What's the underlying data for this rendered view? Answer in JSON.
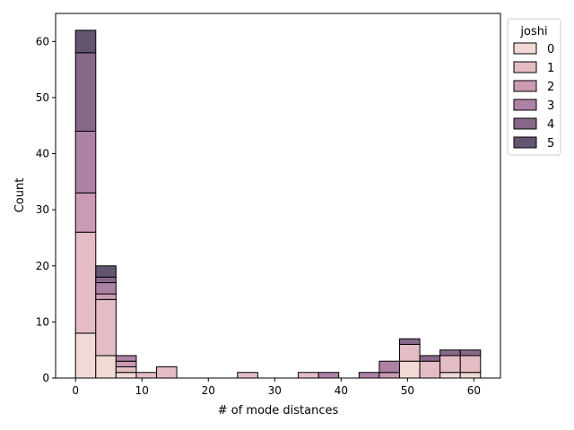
{
  "chart_data": {
    "type": "bar",
    "stacked": true,
    "title": "",
    "xlabel": "# of mode distances",
    "ylabel": "Count",
    "xlim": [
      -3,
      64
    ],
    "ylim": [
      0,
      65
    ],
    "x_ticks": [
      0,
      10,
      20,
      30,
      40,
      50,
      60
    ],
    "y_ticks": [
      0,
      10,
      20,
      30,
      40,
      50,
      60
    ],
    "grid": false,
    "legend": {
      "title": "joshi",
      "placement": "upper-right-outside"
    },
    "bins": [
      {
        "x0": 0.0,
        "x1": 3.05
      },
      {
        "x0": 3.05,
        "x1": 6.1
      },
      {
        "x0": 6.1,
        "x1": 9.15
      },
      {
        "x0": 9.15,
        "x1": 12.2
      },
      {
        "x0": 12.2,
        "x1": 15.25
      },
      {
        "x0": 15.25,
        "x1": 18.3
      },
      {
        "x0": 18.3,
        "x1": 21.35
      },
      {
        "x0": 21.35,
        "x1": 24.4
      },
      {
        "x0": 24.4,
        "x1": 27.45
      },
      {
        "x0": 27.45,
        "x1": 30.5
      },
      {
        "x0": 30.5,
        "x1": 33.55
      },
      {
        "x0": 33.55,
        "x1": 36.6
      },
      {
        "x0": 36.6,
        "x1": 39.65
      },
      {
        "x0": 39.65,
        "x1": 42.7
      },
      {
        "x0": 42.7,
        "x1": 45.75
      },
      {
        "x0": 45.75,
        "x1": 48.8
      },
      {
        "x0": 48.8,
        "x1": 51.85
      },
      {
        "x0": 51.85,
        "x1": 54.9
      },
      {
        "x0": 54.9,
        "x1": 57.95
      },
      {
        "x0": 57.95,
        "x1": 61.0
      }
    ],
    "series": [
      {
        "name": "0",
        "color": "#f1dad6",
        "values": [
          8,
          4,
          1,
          0,
          0,
          0,
          0,
          0,
          0,
          0,
          0,
          0,
          0,
          0,
          0,
          0,
          3,
          0,
          1,
          1
        ]
      },
      {
        "name": "1",
        "color": "#e4bcc4",
        "values": [
          18,
          10,
          1,
          1,
          2,
          0,
          0,
          0,
          1,
          0,
          0,
          1,
          0,
          0,
          0,
          0,
          3,
          3,
          3,
          3
        ]
      },
      {
        "name": "2",
        "color": "#cb9ab3",
        "values": [
          7,
          1,
          1,
          0,
          0,
          0,
          0,
          0,
          0,
          0,
          0,
          0,
          0,
          0,
          0,
          1,
          0,
          0,
          0,
          0
        ]
      },
      {
        "name": "3",
        "color": "#ad82a5",
        "values": [
          11,
          2,
          1,
          0,
          0,
          0,
          0,
          0,
          0,
          0,
          0,
          0,
          1,
          0,
          1,
          2,
          0,
          0,
          0,
          0
        ]
      },
      {
        "name": "4",
        "color": "#876889",
        "values": [
          14,
          1,
          0,
          0,
          0,
          0,
          0,
          0,
          0,
          0,
          0,
          0,
          0,
          0,
          0,
          0,
          1,
          1,
          1,
          1
        ]
      },
      {
        "name": "5",
        "color": "#63546f",
        "values": [
          4,
          2,
          0,
          0,
          0,
          0,
          0,
          0,
          0,
          0,
          0,
          0,
          0,
          0,
          0,
          0,
          0,
          0,
          0,
          0
        ]
      }
    ]
  }
}
